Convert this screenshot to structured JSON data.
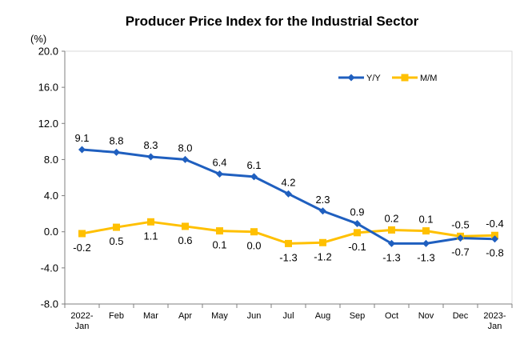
{
  "chart_data": {
    "type": "line",
    "title": "Producer Price Index for the Industrial Sector",
    "ylabel": "(%)",
    "xlabel": "",
    "categories": [
      [
        "2022-",
        "Jan"
      ],
      [
        "Feb"
      ],
      [
        "Mar"
      ],
      [
        "Apr"
      ],
      [
        "May"
      ],
      [
        "Jun"
      ],
      [
        "Jul"
      ],
      [
        "Aug"
      ],
      [
        "Sep"
      ],
      [
        "Oct"
      ],
      [
        "Nov"
      ],
      [
        "Dec"
      ],
      [
        "2023-",
        "Jan"
      ]
    ],
    "ylim": [
      -8.0,
      20.0
    ],
    "yticks": [
      "20.0",
      "16.0",
      "12.0",
      "8.0",
      "4.0",
      "0.0",
      "-4.0",
      "-8.0"
    ],
    "ytick_values": [
      20,
      16,
      12,
      8,
      4,
      0,
      -4,
      -8
    ],
    "grid": false,
    "legend_position": "top-right",
    "series": [
      {
        "name": "Y/Y",
        "color": "#1F5FBF",
        "marker": "diamond",
        "values": [
          9.1,
          8.8,
          8.3,
          8.0,
          6.4,
          6.1,
          4.2,
          2.3,
          0.9,
          -1.3,
          -1.3,
          -0.7,
          -0.8
        ],
        "labels": [
          "9.1",
          "8.8",
          "8.3",
          "8.0",
          "6.4",
          "6.1",
          "4.2",
          "2.3",
          "0.9",
          "-1.3",
          "-1.3",
          "-0.7",
          "-0.8"
        ]
      },
      {
        "name": "M/M",
        "color": "#FFC000",
        "marker": "square",
        "values": [
          -0.2,
          0.5,
          1.1,
          0.6,
          0.1,
          0.0,
          -1.3,
          -1.2,
          -0.1,
          0.2,
          0.1,
          -0.5,
          -0.4
        ],
        "labels": [
          "-0.2",
          "0.5",
          "1.1",
          "0.6",
          "0.1",
          "0.0",
          "-1.3",
          "-1.2",
          "-0.1",
          "0.2",
          "0.1",
          "-0.5",
          "-0.4"
        ]
      }
    ]
  }
}
